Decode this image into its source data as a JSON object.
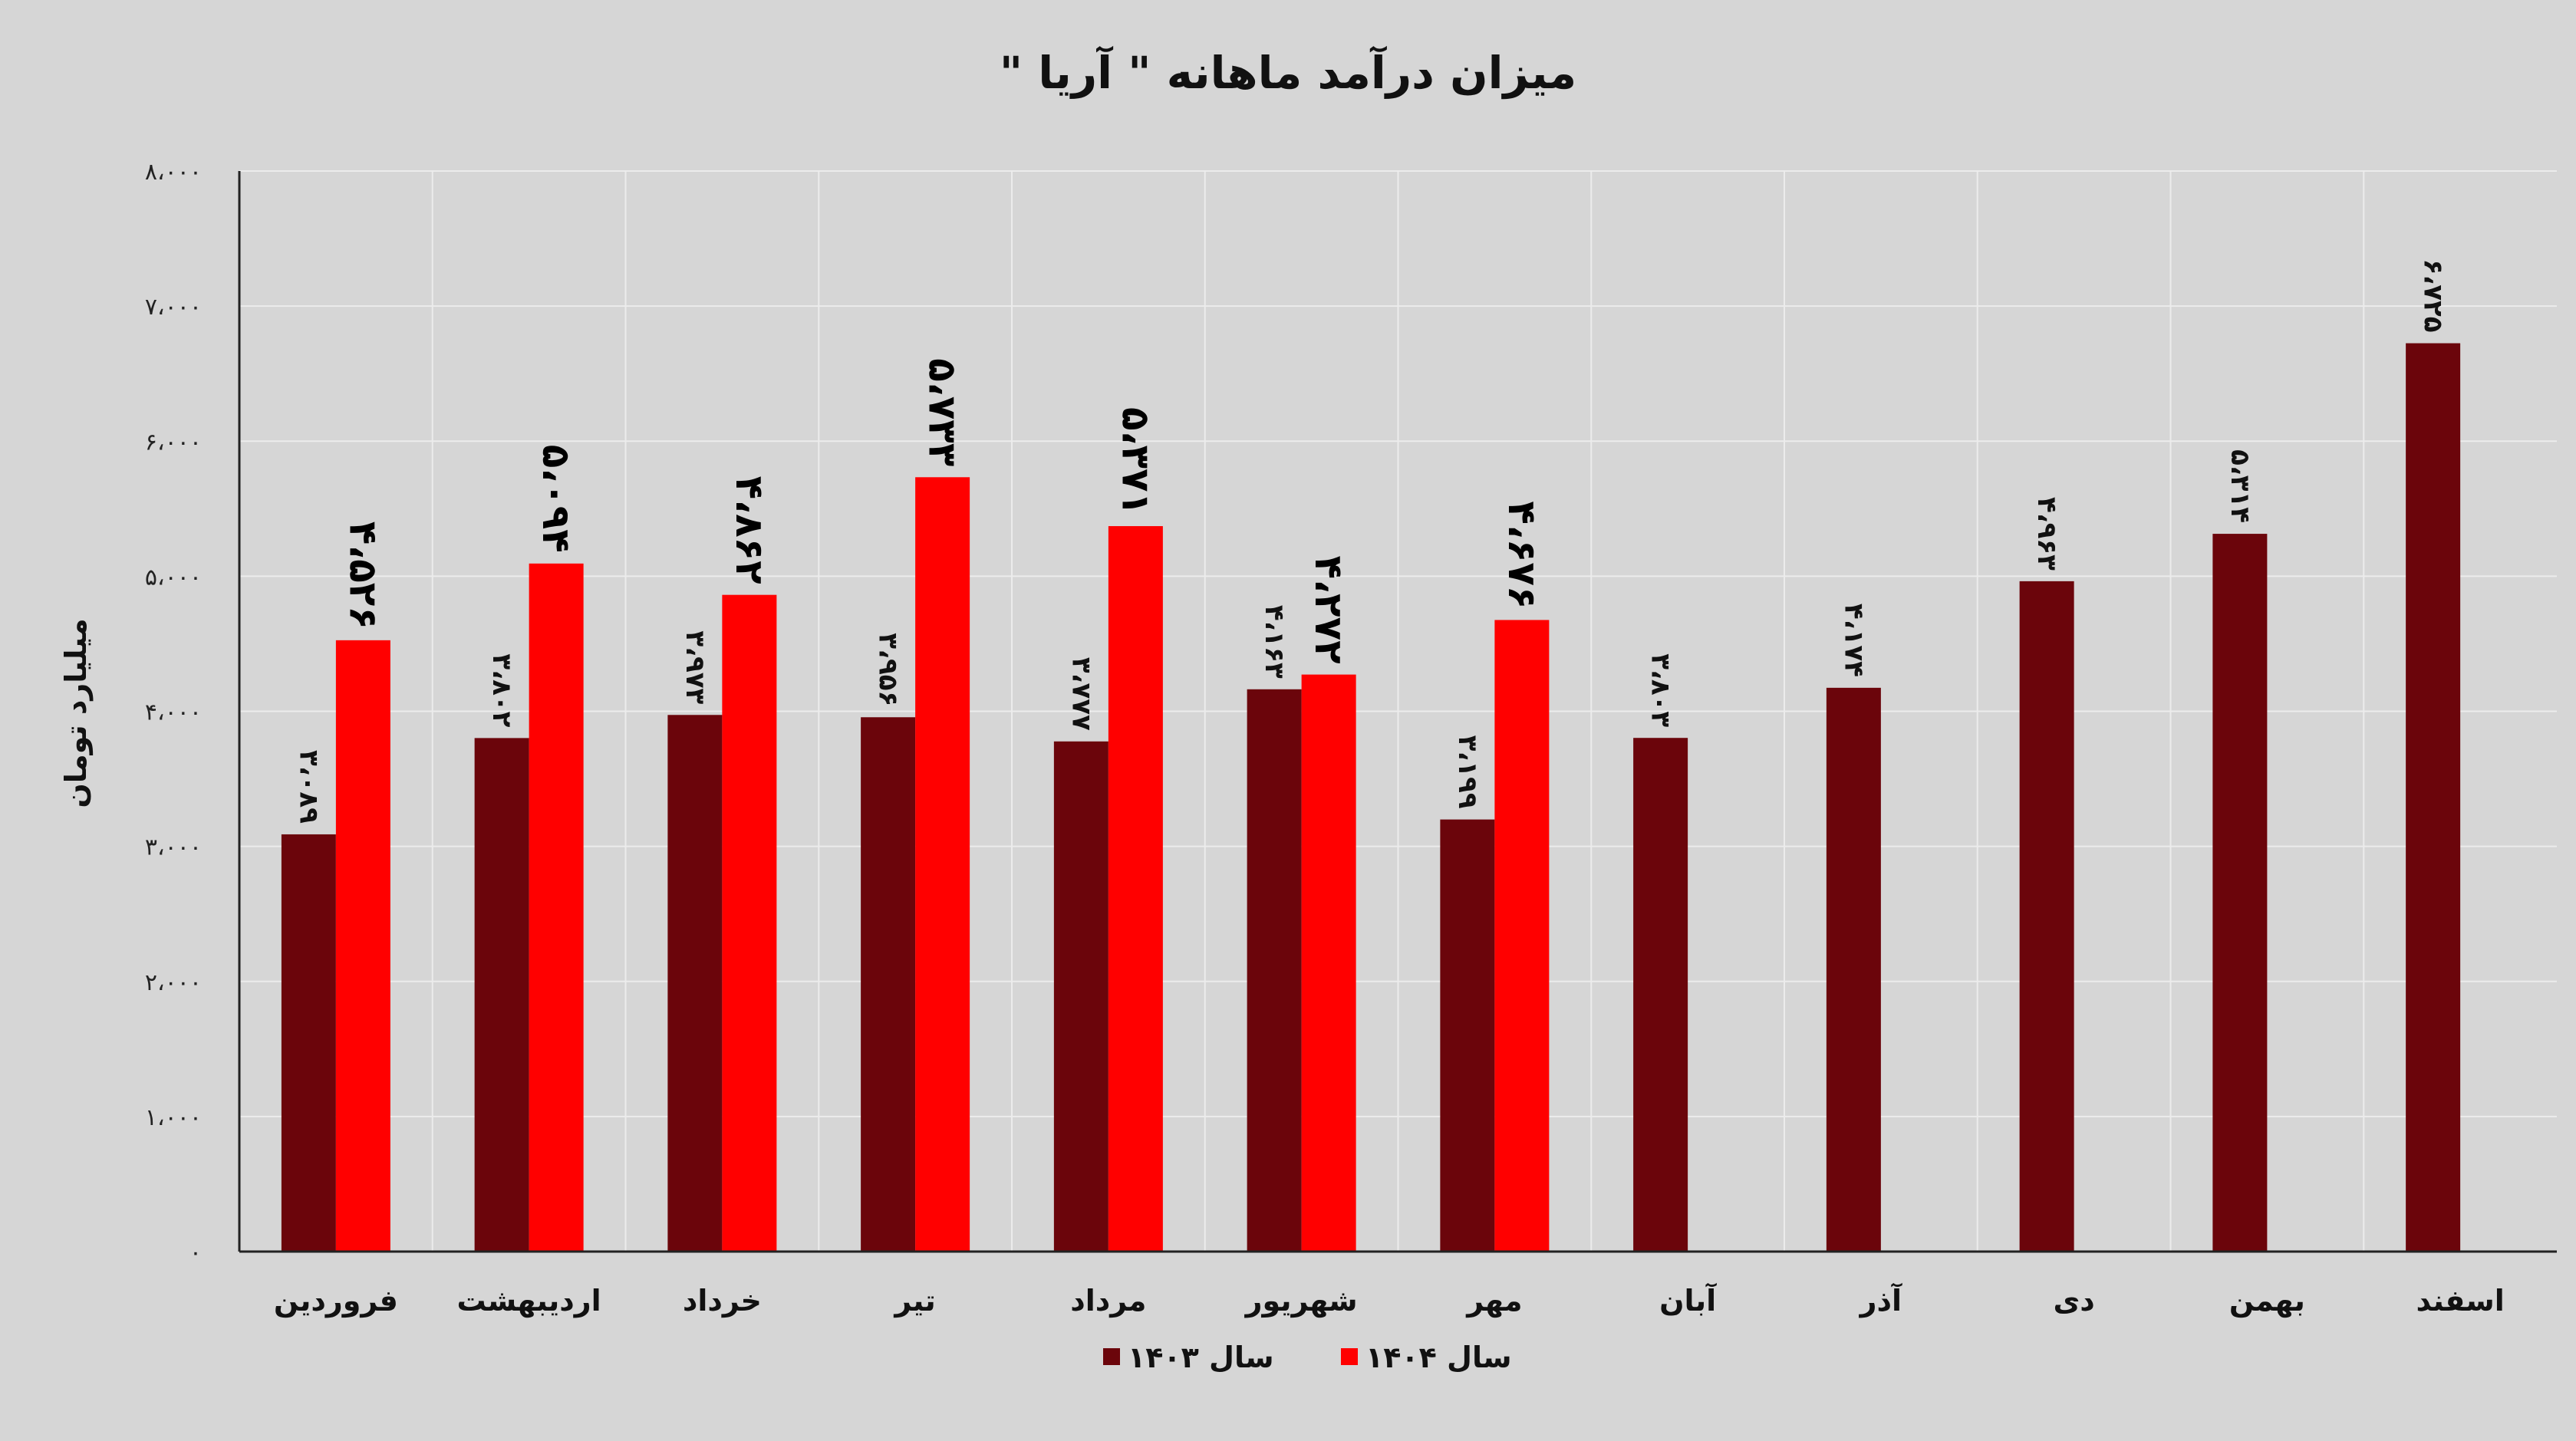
{
  "chart_data": {
    "type": "bar",
    "title": "میزان درآمد ماهانه \" آریا \"",
    "ylabel": "میلیارد تومان",
    "ylim": [
      0,
      8000
    ],
    "yticks": [
      0,
      1000,
      2000,
      3000,
      4000,
      5000,
      6000,
      7000,
      8000
    ],
    "ytick_labels": [
      "۰",
      "۱،۰۰۰",
      "۲،۰۰۰",
      "۳،۰۰۰",
      "۴،۰۰۰",
      "۵،۰۰۰",
      "۶،۰۰۰",
      "۷،۰۰۰",
      "۸،۰۰۰"
    ],
    "grid": true,
    "legend_position": "bottom",
    "categories": [
      "فروردین",
      "اردیبهشت",
      "خرداد",
      "تیر",
      "مرداد",
      "شهریور",
      "مهر",
      "آبان",
      "آذر",
      "دی",
      "بهمن",
      "اسفند"
    ],
    "series": [
      {
        "name": "سال ۱۴۰۳",
        "color": "#6b050b",
        "values": [
          3089,
          3802,
          3973,
          3956,
          3777,
          4163,
          3199,
          3803,
          4174,
          4963,
          5314,
          6725
        ],
        "labels": [
          "۳،۰۸۹",
          "۳،۸۰۲",
          "۳،۹۷۳",
          "۳،۹۵۶",
          "۳،۷۷۷",
          "۴،۱۶۳",
          "۳،۱۹۹",
          "۳،۸۰۳",
          "۴،۱۷۴",
          "۴،۹۶۳",
          "۵،۳۱۴",
          "۶،۷۲۵"
        ]
      },
      {
        "name": "سال ۱۴۰۴",
        "color": "#ff0000",
        "values": [
          4526,
          5094,
          4862,
          5733,
          5371,
          4272,
          4676,
          null,
          null,
          null,
          null,
          null
        ],
        "labels": [
          "۴،۵۲۶",
          "۵،۰۹۴",
          "۴،۸۶۲",
          "۵،۷۳۳",
          "۵،۳۷۱",
          "۴،۲۷۲",
          "۴،۶۷۶",
          "",
          "",
          "",
          "",
          ""
        ]
      }
    ]
  }
}
